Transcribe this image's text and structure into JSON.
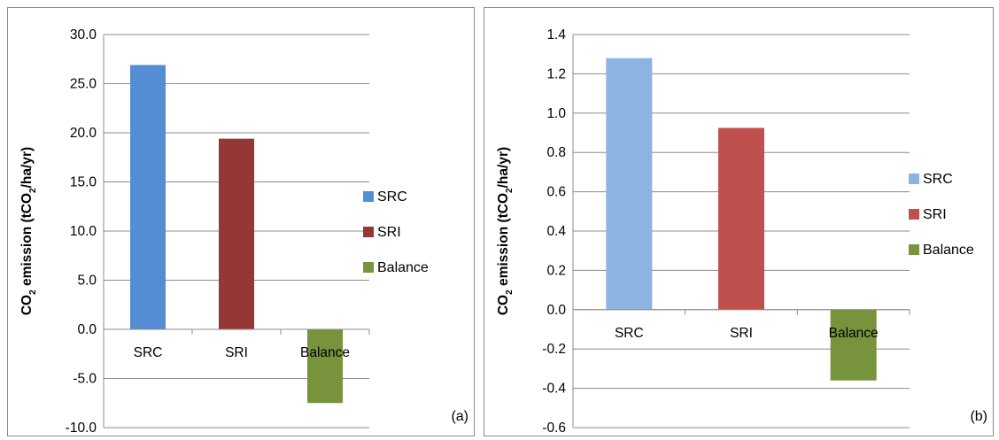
{
  "chart_data": [
    {
      "type": "bar",
      "panel_label": "(a)",
      "categories": [
        "SRC",
        "SRI",
        "Balance"
      ],
      "values": [
        26.9,
        19.4,
        -7.5
      ],
      "colors": [
        "#548dd4",
        "#953735",
        "#77933c"
      ],
      "legend": [
        "SRC",
        "SRI",
        "Balance"
      ],
      "legend_position": "right",
      "ylabel_main": "CO",
      "ylabel_sub": "2",
      "ylabel_rest": " emission (tCO",
      "ylabel_sub2": "2",
      "ylabel_end": "/ha/yr)",
      "ylim": [
        -10,
        30
      ],
      "yticks": [
        "-10.0",
        "-5.0",
        "0.0",
        "5.0",
        "10.0",
        "15.0",
        "20.0",
        "25.0",
        "30.0"
      ],
      "ytick_values": [
        -10,
        -5,
        0,
        5,
        10,
        15,
        20,
        25,
        30
      ],
      "grid": true
    },
    {
      "type": "bar",
      "panel_label": "(b)",
      "categories": [
        "SRC",
        "SRI",
        "Balance"
      ],
      "values": [
        1.28,
        0.925,
        -0.36
      ],
      "colors": [
        "#8db3e2",
        "#c0504d",
        "#77933c"
      ],
      "legend": [
        "SRC",
        "SRI",
        "Balance"
      ],
      "legend_position": "right",
      "ylabel_main": "CO",
      "ylabel_sub": "2",
      "ylabel_rest": " emission (tCO",
      "ylabel_sub2": "2",
      "ylabel_end": "/ha/yr)",
      "ylim": [
        -0.6,
        1.4
      ],
      "yticks": [
        "-0.6",
        "-0.4",
        "-0.2",
        "0.0",
        "0.2",
        "0.4",
        "0.6",
        "0.8",
        "1.0",
        "1.2",
        "1.4"
      ],
      "ytick_values": [
        -0.6,
        -0.4,
        -0.2,
        0,
        0.2,
        0.4,
        0.6,
        0.8,
        1.0,
        1.2,
        1.4
      ],
      "grid": true
    }
  ]
}
